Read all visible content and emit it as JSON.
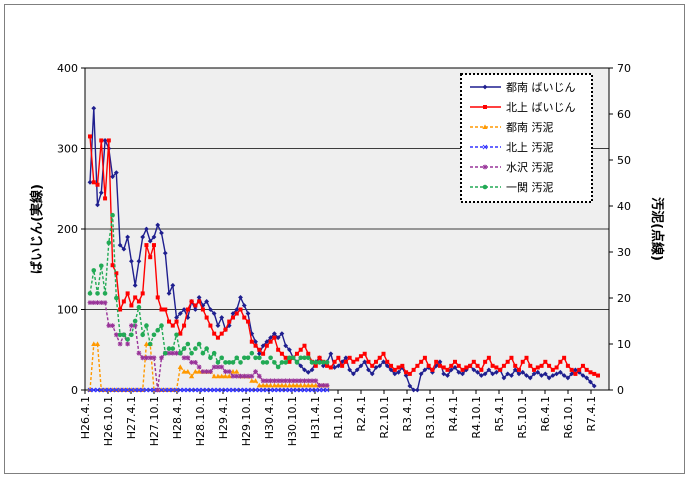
{
  "chart_data": {
    "type": "line",
    "y_left": {
      "label": "ばいじん(実線)",
      "range": [
        0,
        400
      ],
      "ticks": [
        "0",
        "100",
        "200",
        "300",
        "400"
      ]
    },
    "y_right": {
      "label": "汚泥(点線)",
      "range": [
        0,
        70
      ],
      "ticks": [
        "0",
        "10",
        "20",
        "30",
        "40",
        "50",
        "60",
        "70"
      ]
    },
    "x_ticks": [
      "H26.4.1",
      "H26.10.1",
      "H27.4.1",
      "H27.10.1",
      "H28.4.1",
      "H28.10.1",
      "H29.4.1",
      "H29.10.1",
      "H30.4.1",
      "H30.10.1",
      "H31.4.1",
      "R1.10.1",
      "R2.4.1",
      "R2.10.1",
      "R3.4.1",
      "R3.10.1",
      "R4.4.1",
      "R4.10.1",
      "R5.4.1",
      "R5.10.1",
      "R6.4.1",
      "R6.10.1",
      "R7.4.1"
    ],
    "grid": true,
    "legend_position": "top-right",
    "series": [
      {
        "name": "都南 ばいじん",
        "axis": "left",
        "color": "#1f1f8f",
        "style": "solid",
        "marker": "diamond",
        "start": 0,
        "values": [
          258,
          350,
          230,
          245,
          310,
          300,
          265,
          270,
          180,
          175,
          190,
          160,
          130,
          160,
          190,
          200,
          185,
          190,
          205,
          195,
          170,
          120,
          130,
          90,
          95,
          100,
          90,
          110,
          100,
          115,
          105,
          110,
          100,
          95,
          80,
          90,
          75,
          80,
          95,
          100,
          115,
          105,
          95,
          70,
          60,
          45,
          55,
          60,
          65,
          70,
          65,
          70,
          55,
          50,
          40,
          35,
          30,
          25,
          22,
          25,
          35,
          40,
          30,
          35,
          45,
          28,
          30,
          35,
          40,
          25,
          20,
          25,
          30,
          35,
          25,
          20,
          28,
          30,
          35,
          30,
          25,
          20,
          22,
          28,
          18,
          5,
          0,
          0,
          20,
          25,
          28,
          22,
          30,
          35,
          20,
          18,
          25,
          28,
          22,
          20,
          25,
          30,
          25,
          22,
          18,
          20,
          25,
          20,
          22,
          25,
          15,
          20,
          18,
          25,
          20,
          22,
          18,
          15,
          20,
          22,
          18,
          20,
          15,
          18,
          20,
          22,
          18,
          15,
          20,
          25,
          22,
          18,
          15,
          10,
          5
        ]
      },
      {
        "name": "北上 ばいじん",
        "axis": "left",
        "color": "#ff0000",
        "style": "solid",
        "marker": "square",
        "start": 0,
        "values": [
          315,
          258,
          255,
          310,
          238,
          310,
          155,
          145,
          100,
          110,
          120,
          105,
          115,
          110,
          120,
          180,
          165,
          180,
          115,
          100,
          100,
          85,
          80,
          85,
          70,
          80,
          100,
          110,
          105,
          110,
          100,
          90,
          80,
          70,
          65,
          70,
          75,
          85,
          90,
          95,
          100,
          90,
          85,
          60,
          55,
          50,
          45,
          55,
          60,
          65,
          50,
          45,
          40,
          35,
          40,
          45,
          50,
          55,
          45,
          35,
          30,
          40,
          35,
          30,
          28,
          35,
          40,
          30,
          35,
          40,
          35,
          38,
          42,
          45,
          35,
          30,
          35,
          40,
          45,
          35,
          30,
          25,
          28,
          30,
          22,
          20,
          25,
          30,
          35,
          40,
          30,
          25,
          35,
          30,
          28,
          25,
          30,
          35,
          30,
          25,
          28,
          30,
          35,
          30,
          25,
          35,
          40,
          30,
          28,
          25,
          30,
          35,
          40,
          30,
          25,
          35,
          40,
          30,
          25,
          28,
          30,
          35,
          30,
          25,
          28,
          35,
          40,
          30,
          25,
          20,
          25,
          30,
          25,
          22,
          20,
          18
        ]
      },
      {
        "name": "都南 汚泥",
        "axis": "right",
        "color": "#ff9900",
        "style": "dashed",
        "marker": "triangle",
        "start": 0,
        "values": [
          0,
          10,
          10,
          0,
          0,
          0,
          0,
          0,
          0,
          0,
          0,
          0,
          0,
          0,
          0,
          10,
          10,
          0,
          0,
          0,
          0,
          0,
          0,
          0,
          5,
          4,
          4,
          3,
          4,
          4,
          4,
          4,
          4,
          3,
          3,
          3,
          3,
          3,
          4,
          4,
          3,
          3,
          3,
          2,
          2,
          1,
          1,
          1,
          1,
          1,
          1,
          1,
          1,
          1,
          1,
          1,
          1,
          1,
          1,
          1,
          1,
          1,
          1,
          1
        ]
      },
      {
        "name": "北上 汚泥",
        "axis": "right",
        "color": "#3333ff",
        "style": "dashed",
        "marker": "x",
        "start": 0,
        "values": [
          0,
          0,
          0,
          0,
          0,
          0,
          0,
          0,
          0,
          0,
          0,
          0,
          0,
          0,
          0,
          0,
          0,
          0,
          0,
          0,
          0,
          0,
          0,
          0,
          0,
          0,
          0,
          0,
          0,
          0,
          0,
          0,
          0,
          0,
          0,
          0,
          0,
          0,
          0,
          0,
          0,
          0,
          0,
          0,
          0,
          0,
          0,
          0,
          0,
          0,
          0,
          0,
          0,
          0,
          0,
          0,
          0,
          0,
          0,
          0,
          0,
          0,
          0,
          0
        ]
      },
      {
        "name": "水沢 汚泥",
        "axis": "right",
        "color": "#993399",
        "style": "dashed",
        "marker": "star",
        "start": 0,
        "values": [
          19,
          19,
          19,
          19,
          19,
          14,
          14,
          12,
          10,
          12,
          10,
          14,
          14,
          8,
          7,
          7,
          7,
          7,
          0,
          7,
          8,
          8,
          8,
          8,
          8,
          7,
          7,
          6,
          6,
          5,
          4,
          4,
          4,
          5,
          5,
          5,
          4,
          4,
          3,
          3,
          3,
          3,
          3,
          3,
          4,
          3,
          2,
          2,
          2,
          2,
          2,
          2,
          2,
          2,
          2,
          2,
          2,
          2,
          2,
          2,
          2,
          1,
          1,
          1
        ]
      },
      {
        "name": "一関 汚泥",
        "axis": "right",
        "color": "#22aa55",
        "style": "dashed",
        "marker": "circle",
        "start": 0,
        "values": [
          21,
          26,
          21,
          27,
          21,
          32,
          38,
          20,
          12,
          12,
          11,
          12,
          15,
          18,
          12,
          14,
          10,
          12,
          13,
          14,
          8,
          9,
          9,
          12,
          8,
          9,
          10,
          8,
          9,
          10,
          8,
          9,
          7,
          8,
          6,
          7,
          6,
          6,
          6,
          7,
          6,
          7,
          7,
          8,
          7,
          7,
          6,
          6,
          7,
          6,
          5,
          6,
          6,
          7,
          7,
          6,
          7,
          7,
          7,
          6,
          6,
          6,
          6,
          6
        ]
      }
    ]
  }
}
